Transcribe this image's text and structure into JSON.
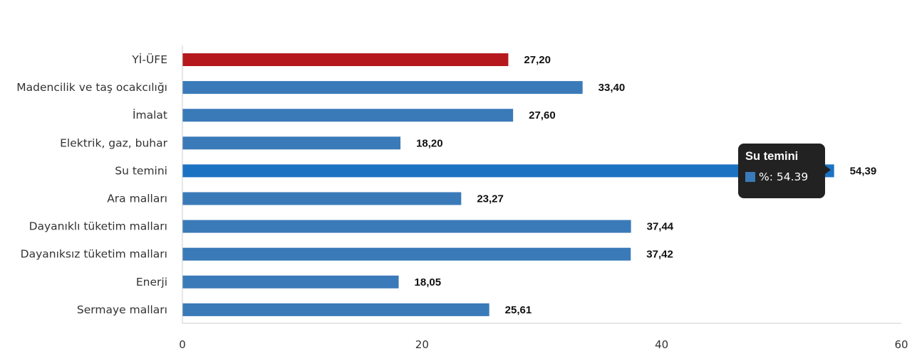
{
  "chart_data": {
    "type": "bar",
    "orientation": "horizontal",
    "categories": [
      "Yİ-ÜFE",
      "Madencilik ve taş ocakcılığı",
      "İmalat",
      "Elektrik, gaz, buhar",
      "Su temini",
      "Ara malları",
      "Dayanıklı tüketim malları",
      "Dayanıksız tüketim malları",
      "Enerji",
      "Sermaye malları"
    ],
    "values": [
      27.2,
      33.4,
      27.6,
      18.2,
      54.39,
      23.27,
      37.44,
      37.42,
      18.05,
      25.61
    ],
    "value_labels": [
      "27,20",
      "33,40",
      "27,60",
      "18,20",
      "54,39",
      "23,27",
      "37,44",
      "37,42",
      "18,05",
      "25,61"
    ],
    "xlim": [
      0,
      60
    ],
    "x_ticks": [
      0,
      20,
      40,
      60
    ],
    "grid": false,
    "colors": {
      "default": "#3a7ab9",
      "highlight_first": "#b5191d",
      "hovered": "#1c72c2"
    },
    "hovered_index": 4
  },
  "tooltip": {
    "title": "Su temini",
    "text": "%: 54.39",
    "swatch_color": "#3a7ab9"
  }
}
